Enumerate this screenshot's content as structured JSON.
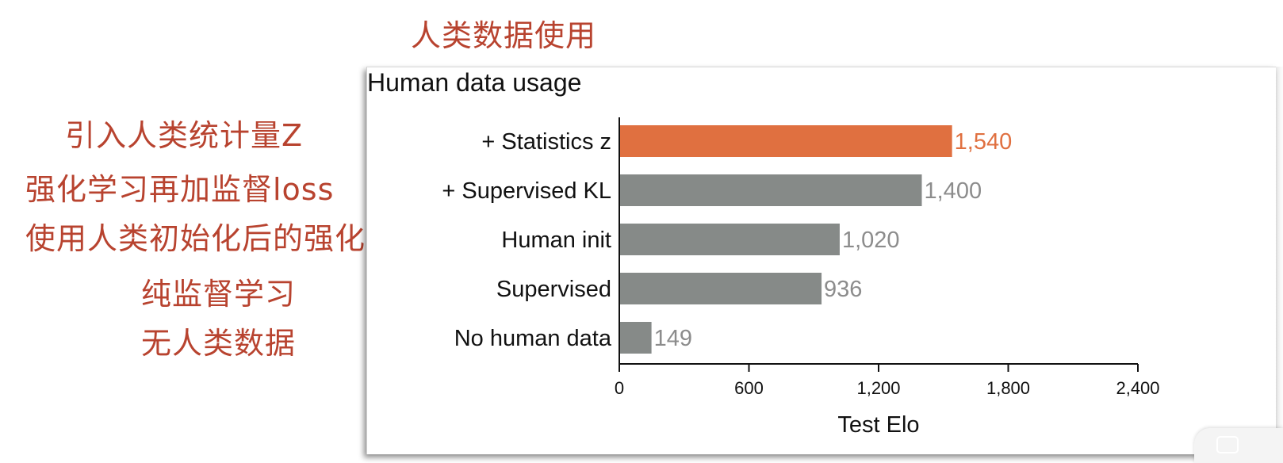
{
  "annotations": {
    "slide_title": "人类数据使用",
    "labels": [
      "引入人类统计量Z",
      "强化学习再加监督loss",
      "使用人类初始化后的强化学习",
      "纯监督学习",
      "无人类数据"
    ]
  },
  "colors": {
    "highlight": "#e07040",
    "default_bar": "#868a88",
    "default_value_text": "#8c8c8c",
    "annotation_text": "#b8432f"
  },
  "chart_data": {
    "type": "bar",
    "orientation": "horizontal",
    "title": "Human data usage",
    "xlabel": "Test Elo",
    "ylabel": "",
    "xlim": [
      0,
      2400
    ],
    "xticks": [
      0,
      600,
      1200,
      1800,
      2400
    ],
    "xtick_labels": [
      "0",
      "600",
      "1,200",
      "1,800",
      "2,400"
    ],
    "grid": false,
    "categories": [
      "+ Statistics z",
      "+ Supervised KL",
      "Human init",
      "Supervised",
      "No human data"
    ],
    "values": [
      1540,
      1400,
      1020,
      936,
      149
    ],
    "value_labels": [
      "1,540",
      "1,400",
      "1,020",
      "936",
      "149"
    ],
    "highlighted_index": 0
  }
}
